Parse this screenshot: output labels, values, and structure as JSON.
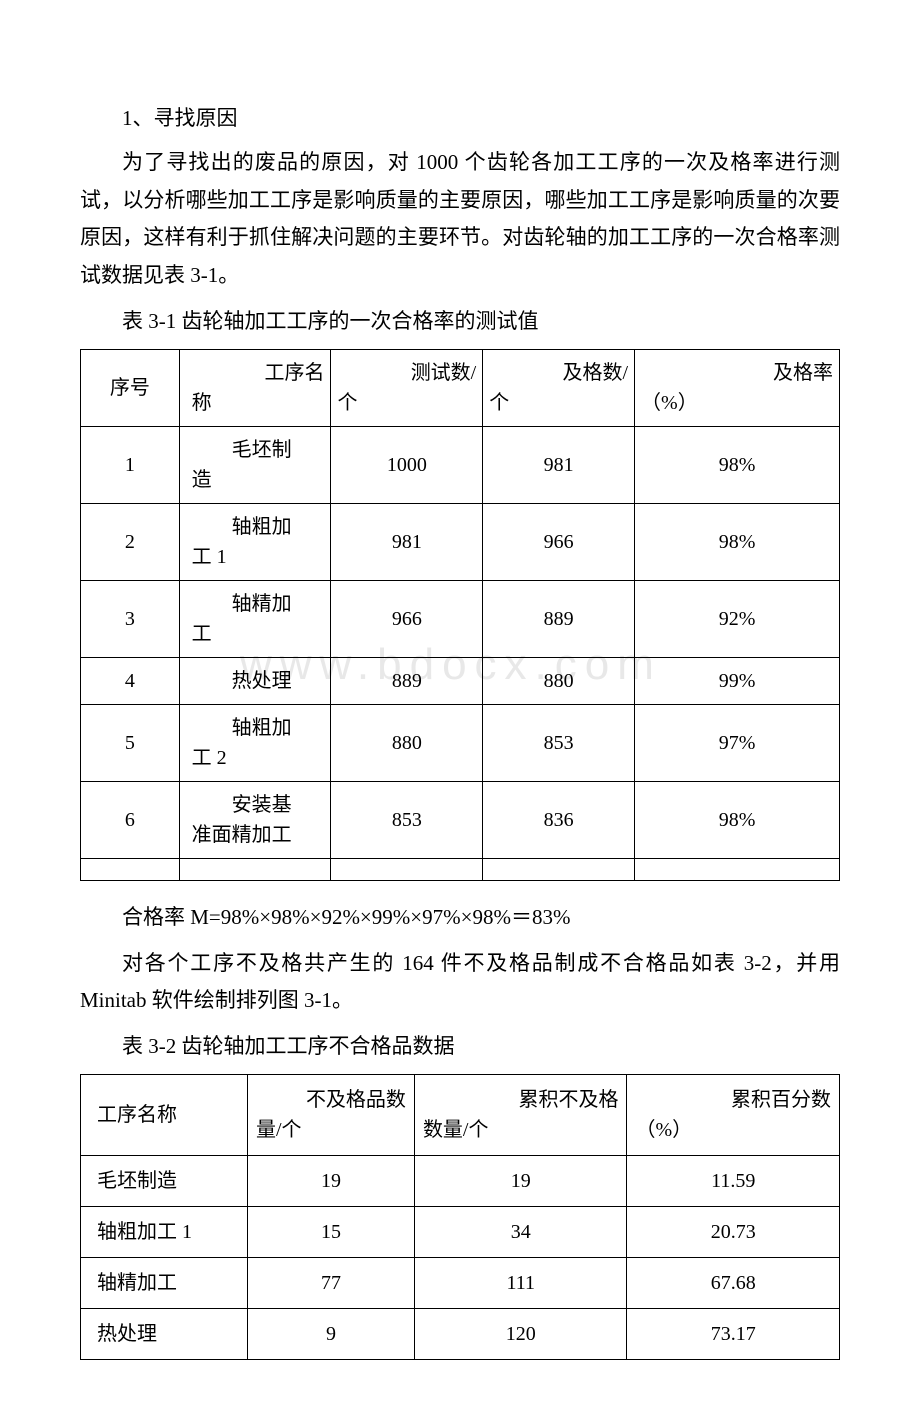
{
  "watermark": "www.bdocx.com",
  "section_heading": "1、寻找原因",
  "paragraph1": "为了寻找出的废品的原因，对 1000 个齿轮各加工工序的一次及格率进行测试，以分析哪些加工工序是影响质量的主要原因，哪些加工工序是影响质量的次要原因，这样有利于抓住解决问题的主要环节。对齿轮轴的加工工序的一次合格率测试数据见表 3-1。",
  "table1_title": "表 3-1 齿轮轴加工工序的一次合格率的测试值",
  "table1": {
    "columns": [
      {
        "line1": "",
        "line2": "序号"
      },
      {
        "line1": "工序名",
        "line2": "称"
      },
      {
        "line1": "测试数/",
        "line2": "个"
      },
      {
        "line1": "及格数/",
        "line2": "个"
      },
      {
        "line1": "及格率",
        "line2": "（%）"
      }
    ],
    "rows": [
      {
        "seq": "1",
        "name_l1": "毛坯制",
        "name_l2": "造",
        "tested": "1000",
        "passed": "981",
        "rate": "98%"
      },
      {
        "seq": "2",
        "name_l1": "轴粗加",
        "name_l2": "工 1",
        "tested": "981",
        "passed": "966",
        "rate": "98%"
      },
      {
        "seq": "3",
        "name_l1": "轴精加",
        "name_l2": "工",
        "tested": "966",
        "passed": "889",
        "rate": "92%"
      },
      {
        "seq": "4",
        "name_l1": "",
        "name_l2": "热处理",
        "tested": "889",
        "passed": "880",
        "rate": "99%"
      },
      {
        "seq": "5",
        "name_l1": "轴粗加",
        "name_l2": "工 2",
        "tested": "880",
        "passed": "853",
        "rate": "97%"
      },
      {
        "seq": "6",
        "name_l1": "安装基",
        "name_l2": "准面精加工",
        "tested": "853",
        "passed": "836",
        "rate": "98%"
      }
    ]
  },
  "formula": "合格率 M=98%×98%×92%×99%×97%×98%＝83%",
  "paragraph2": "对各个工序不及格共产生的 164 件不及格品制成不合格品如表 3-2，并用 Minitab 软件绘制排列图 3-1。",
  "table2_title": "表 3-2 齿轮轴加工工序不合格品数据",
  "table2": {
    "columns": [
      {
        "line1": "",
        "line2": "工序名称"
      },
      {
        "line1": "不及格品数",
        "line2": "量/个"
      },
      {
        "line1": "累积不及格",
        "line2": "数量/个"
      },
      {
        "line1": "累积百分数",
        "line2": "（%）"
      }
    ],
    "rows": [
      {
        "name": "毛坯制造",
        "fail": "19",
        "cum": "19",
        "pct": "11.59"
      },
      {
        "name": "轴粗加工 1",
        "fail": "15",
        "cum": "34",
        "pct": "20.73"
      },
      {
        "name": "轴精加工",
        "fail": "77",
        "cum": "111",
        "pct": "67.68"
      },
      {
        "name": "热处理",
        "fail": "9",
        "cum": "120",
        "pct": "73.17"
      }
    ]
  }
}
